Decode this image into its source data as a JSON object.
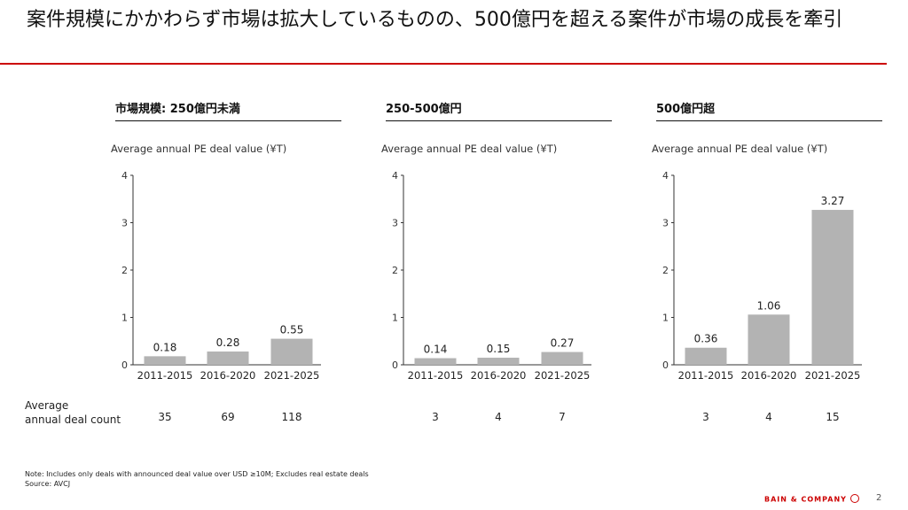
{
  "slide": {
    "title": "案件規模にかかわらず市場は拡大しているものの、500億円を超える案件が市場の成長を牽引",
    "row_label_line1": "Average",
    "row_label_line2": "annual deal count",
    "note": "Note: Includes only deals with announced deal value over USD ≥10M; Excludes real estate deals",
    "source": "Source: AVCJ",
    "logo_text": "BAIN & COMPANY",
    "page_number": "2",
    "accent_color": "#cc0000",
    "bar_color": "#b3b3b3"
  },
  "panels": [
    {
      "heading": "市場規模: 250億円未満",
      "chart_label": "Average annual PE deal value (¥T)",
      "deal_counts": [
        "35",
        "69",
        "118"
      ]
    },
    {
      "heading": "250-500億円",
      "chart_label": "Average annual PE deal value (¥T)",
      "deal_counts": [
        "3",
        "4",
        "7"
      ]
    },
    {
      "heading": "500億円超",
      "chart_label": "Average annual PE deal value (¥T)",
      "deal_counts": [
        "3",
        "4",
        "15"
      ]
    }
  ],
  "chart_data": [
    {
      "type": "bar",
      "title": "市場規模: 250億円未満",
      "ylabel": "Average annual PE deal value (¥T)",
      "categories": [
        "2011-2015",
        "2016-2020",
        "2021-2025"
      ],
      "values": [
        0.18,
        0.28,
        0.55
      ],
      "data_labels": [
        "0.18",
        "0.28",
        "0.55"
      ],
      "yticks": [
        0,
        1,
        2,
        3,
        4
      ],
      "ylim": [
        0,
        4
      ],
      "grid": false,
      "legend": "none"
    },
    {
      "type": "bar",
      "title": "250-500億円",
      "ylabel": "Average annual PE deal value (¥T)",
      "categories": [
        "2011-2015",
        "2016-2020",
        "2021-2025"
      ],
      "values": [
        0.14,
        0.15,
        0.27
      ],
      "data_labels": [
        "0.14",
        "0.15",
        "0.27"
      ],
      "yticks": [
        0,
        1,
        2,
        3,
        4
      ],
      "ylim": [
        0,
        4
      ],
      "grid": false,
      "legend": "none"
    },
    {
      "type": "bar",
      "title": "500億円超",
      "ylabel": "Average annual PE deal value (¥T)",
      "categories": [
        "2011-2015",
        "2016-2020",
        "2021-2025"
      ],
      "values": [
        0.36,
        1.06,
        3.27
      ],
      "data_labels": [
        "0.36",
        "1.06",
        "3.27"
      ],
      "yticks": [
        0,
        1,
        2,
        3,
        4
      ],
      "ylim": [
        0,
        4
      ],
      "grid": false,
      "legend": "none"
    }
  ]
}
